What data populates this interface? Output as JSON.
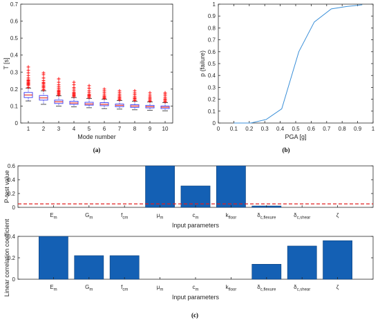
{
  "colors": {
    "axis": "#262626",
    "box": "#4a4af0",
    "median": "#e8322c",
    "outlier": "#ff0000",
    "line": "#3a8fd8",
    "bar": "#1460b4",
    "threshold": "#e01e1e"
  },
  "captions": {
    "a": "(a)",
    "b": "(b)",
    "c": "(c)"
  },
  "chart_data": [
    {
      "type": "box",
      "title": "",
      "xlabel": "Mode number",
      "ylabel": "T [s]",
      "ylim": [
        0,
        0.7
      ],
      "yticks": [
        "0",
        "0.1",
        "0.2",
        "0.3",
        "0.4",
        "0.5",
        "0.6",
        "0.7"
      ],
      "categories": [
        "1",
        "2",
        "3",
        "4",
        "5",
        "6",
        "7",
        "8",
        "9",
        "10"
      ],
      "boxes": [
        {
          "min": 0.13,
          "q1": 0.15,
          "median": 0.165,
          "q3": 0.18,
          "max": 0.205,
          "outliers": [
            0.21,
            0.22,
            0.225,
            0.23,
            0.235,
            0.24,
            0.245,
            0.25,
            0.255,
            0.265,
            0.28,
            0.295,
            0.31,
            0.33
          ]
        },
        {
          "min": 0.11,
          "q1": 0.135,
          "median": 0.148,
          "q3": 0.162,
          "max": 0.19,
          "outliers": [
            0.195,
            0.2,
            0.21,
            0.215,
            0.22,
            0.228,
            0.235,
            0.24,
            0.25,
            0.265,
            0.285,
            0.295
          ]
        },
        {
          "min": 0.1,
          "q1": 0.115,
          "median": 0.125,
          "q3": 0.135,
          "max": 0.16,
          "outliers": [
            0.165,
            0.17,
            0.175,
            0.18,
            0.185,
            0.19,
            0.195,
            0.205,
            0.215,
            0.225,
            0.24,
            0.26
          ]
        },
        {
          "min": 0.095,
          "q1": 0.11,
          "median": 0.118,
          "q3": 0.128,
          "max": 0.15,
          "outliers": [
            0.155,
            0.16,
            0.165,
            0.17,
            0.175,
            0.18,
            0.19,
            0.2,
            0.21,
            0.225,
            0.24
          ]
        },
        {
          "min": 0.09,
          "q1": 0.105,
          "median": 0.112,
          "q3": 0.122,
          "max": 0.145,
          "outliers": [
            0.15,
            0.155,
            0.16,
            0.165,
            0.17,
            0.18,
            0.19,
            0.205,
            0.22
          ]
        },
        {
          "min": 0.085,
          "q1": 0.102,
          "median": 0.11,
          "q3": 0.12,
          "max": 0.14,
          "outliers": [
            0.145,
            0.15,
            0.155,
            0.16,
            0.17,
            0.18,
            0.19,
            0.2
          ]
        },
        {
          "min": 0.082,
          "q1": 0.096,
          "median": 0.104,
          "q3": 0.112,
          "max": 0.132,
          "outliers": [
            0.137,
            0.142,
            0.148,
            0.155,
            0.162,
            0.17,
            0.18,
            0.19
          ]
        },
        {
          "min": 0.078,
          "q1": 0.092,
          "median": 0.1,
          "q3": 0.108,
          "max": 0.128,
          "outliers": [
            0.133,
            0.138,
            0.145,
            0.15,
            0.158,
            0.168,
            0.178,
            0.19
          ]
        },
        {
          "min": 0.075,
          "q1": 0.089,
          "median": 0.096,
          "q3": 0.104,
          "max": 0.124,
          "outliers": [
            0.128,
            0.133,
            0.14,
            0.147,
            0.155,
            0.165,
            0.178
          ]
        },
        {
          "min": 0.072,
          "q1": 0.085,
          "median": 0.093,
          "q3": 0.1,
          "max": 0.12,
          "outliers": [
            0.125,
            0.13,
            0.136,
            0.142,
            0.15,
            0.16,
            0.17,
            0.178
          ]
        }
      ]
    },
    {
      "type": "line",
      "title": "",
      "xlabel": "PGA [g]",
      "ylabel": "p (failure)",
      "xlim": [
        0,
        1
      ],
      "ylim": [
        0,
        1
      ],
      "xticks": [
        "0",
        "0.1",
        "0.2",
        "0.3",
        "0.4",
        "0.5",
        "0.6",
        "0.7",
        "0.8",
        "0.9",
        "1"
      ],
      "yticks": [
        "0",
        "0.1",
        "0.2",
        "0.3",
        "0.4",
        "0.5",
        "0.6",
        "0.7",
        "0.8",
        "0.9",
        "1"
      ],
      "x": [
        0.1,
        0.21,
        0.31,
        0.41,
        0.52,
        0.62,
        0.73,
        0.83,
        0.93
      ],
      "y": [
        0.0,
        0.0,
        0.03,
        0.12,
        0.6,
        0.85,
        0.96,
        0.98,
        0.995
      ]
    },
    {
      "type": "bar",
      "title": "",
      "xlabel": "Input parameters",
      "ylabel": "P-test value",
      "ylim": [
        0,
        0.6
      ],
      "yticks": [
        "0",
        "0.2",
        "0.4",
        "0.6"
      ],
      "categories": [
        {
          "base": "E",
          "sub": "m"
        },
        {
          "base": "G",
          "sub": "m"
        },
        {
          "base": "f",
          "sub": "cm"
        },
        {
          "base": "μ",
          "sub": "m"
        },
        {
          "base": "c",
          "sub": "m"
        },
        {
          "base": "k",
          "sub": "floor"
        },
        {
          "base": "δ",
          "sub": "c,flexure"
        },
        {
          "base": "δ",
          "sub": "c,shear"
        },
        {
          "base": "ζ",
          "sub": ""
        }
      ],
      "values": [
        0,
        0,
        0,
        0.6,
        0.31,
        0.6,
        0.02,
        0,
        0
      ],
      "threshold": 0.05
    },
    {
      "type": "bar",
      "title": "",
      "xlabel": "Input parameters",
      "ylabel": "Linear correlation coefficient",
      "ylim": [
        0,
        0.4
      ],
      "yticks": [
        "0",
        "0.2",
        "0.4"
      ],
      "categories": [
        {
          "base": "E",
          "sub": "m"
        },
        {
          "base": "G",
          "sub": "m"
        },
        {
          "base": "f",
          "sub": "cm"
        },
        {
          "base": "μ",
          "sub": "m"
        },
        {
          "base": "c",
          "sub": "m"
        },
        {
          "base": "k",
          "sub": "floor"
        },
        {
          "base": "δ",
          "sub": "c,flexure"
        },
        {
          "base": "δ",
          "sub": "c,shear"
        },
        {
          "base": "ζ",
          "sub": ""
        }
      ],
      "values": [
        0.4,
        0.22,
        0.22,
        0,
        0,
        0,
        0.14,
        0.31,
        0.36
      ]
    }
  ]
}
